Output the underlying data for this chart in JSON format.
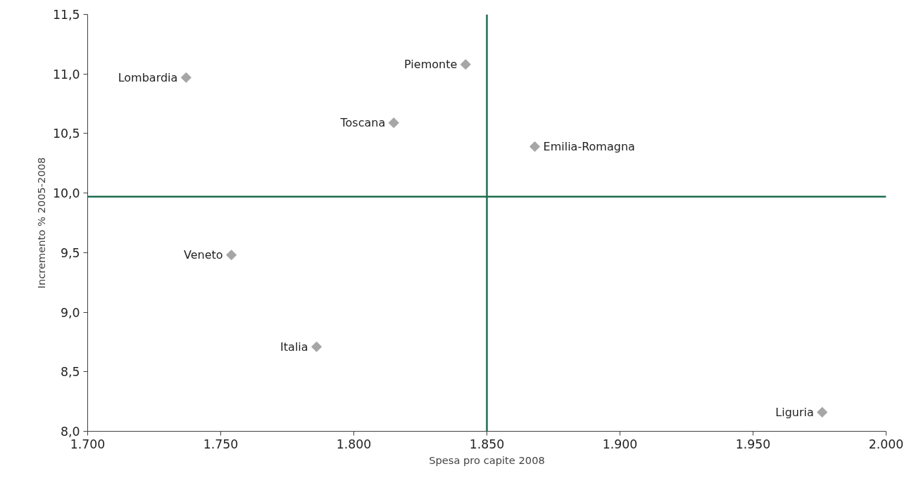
{
  "chart_data": {
    "type": "scatter",
    "xlabel": "Spesa pro capite 2008",
    "ylabel": "Incremento % 2005-2008",
    "x": [
      1737,
      1842,
      1815,
      1868,
      1754,
      1786,
      1976
    ],
    "values": [
      10.97,
      11.08,
      10.59,
      10.39,
      9.48,
      8.71,
      8.16
    ],
    "color": "#a6a6a6",
    "marker": "diamond",
    "grid": false,
    "annotations": [
      {
        "text": "Lombardia",
        "x": 1737,
        "y": 10.97
      },
      {
        "text": "Piemonte",
        "x": 1842,
        "y": 11.08
      },
      {
        "text": "Toscana",
        "x": 1815,
        "y": 10.59
      },
      {
        "text": "Emilia-Romagna",
        "x": 1868,
        "y": 10.39
      },
      {
        "text": "Veneto",
        "x": 1754,
        "y": 9.48
      },
      {
        "text": "Italia",
        "x": 1786,
        "y": 8.71
      },
      {
        "text": "Liguria",
        "x": 1976,
        "y": 8.16
      }
    ],
    "xlim": [
      1700,
      2000
    ],
    "xticks": [
      {
        "value": 1700,
        "label": "1.700"
      },
      {
        "value": 1750,
        "label": "1.750"
      },
      {
        "value": 1800,
        "label": "1.800"
      },
      {
        "value": 1850,
        "label": "1.850"
      },
      {
        "value": 1900,
        "label": "1.900"
      },
      {
        "value": 1950,
        "label": "1.950"
      },
      {
        "value": 2000,
        "label": "2.000"
      }
    ],
    "ylim": [
      8.0,
      11.5
    ],
    "yticks": [
      {
        "value": 8.0,
        "label": "8,0"
      },
      {
        "value": 8.5,
        "label": "8,5"
      },
      {
        "value": 9.0,
        "label": "9,0"
      },
      {
        "value": 9.5,
        "label": "9,5"
      },
      {
        "value": 10.0,
        "label": "10,0"
      },
      {
        "value": 10.5,
        "label": "10,5"
      },
      {
        "value": 11.0,
        "label": "11,0"
      },
      {
        "value": 11.5,
        "label": "11,5"
      }
    ],
    "ref_lines": [
      {
        "axis": "x",
        "value": 1850,
        "color": "#1e6e4e"
      },
      {
        "axis": "y",
        "value": 9.97,
        "color": "#1e6e4e"
      }
    ]
  }
}
